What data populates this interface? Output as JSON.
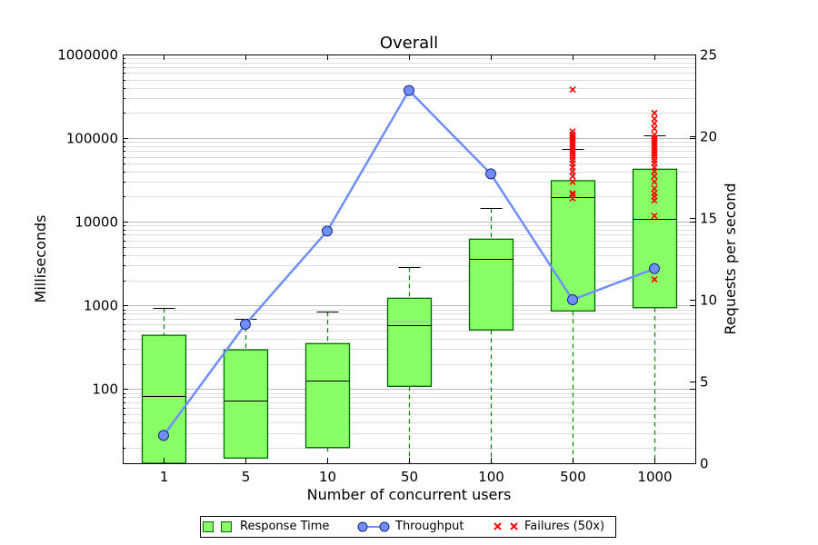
{
  "chart_data": {
    "type": "box",
    "title": "Overall",
    "xlabel": "Number of concurrent users",
    "ylabel": "Milliseconds",
    "y2label": "Requests per second",
    "categories": [
      "1",
      "5",
      "10",
      "50",
      "100",
      "500",
      "1000"
    ],
    "yscale": "log",
    "ylim": [
      13,
      1000000
    ],
    "y_ticks": [
      "100",
      "1000",
      "10000",
      "100000",
      "1000000"
    ],
    "y2lim": [
      0,
      25
    ],
    "y2_ticks": [
      "0",
      "5",
      "10",
      "15",
      "20",
      "25"
    ],
    "grid": "y-major-and-minor",
    "legend_position": "bottom-center",
    "series": [
      {
        "name": "Response Time",
        "kind": "boxplot",
        "color": "#88ff66",
        "edge_color": "#006400",
        "boxes": [
          {
            "whisker_low": 13,
            "q1": 13,
            "median": 82,
            "q3": 440,
            "whisker_high": 930
          },
          {
            "whisker_low": 15,
            "q1": 15,
            "median": 73,
            "q3": 295,
            "whisker_high": 690
          },
          {
            "whisker_low": 18,
            "q1": 20,
            "median": 125,
            "q3": 350,
            "whisker_high": 840
          },
          {
            "whisker_low": 13,
            "q1": 108,
            "median": 580,
            "q3": 1220,
            "whisker_high": 2850
          },
          {
            "whisker_low": 13,
            "q1": 510,
            "median": 3600,
            "q3": 6200,
            "whisker_high": 14500
          },
          {
            "whisker_low": 13,
            "q1": 860,
            "median": 19500,
            "q3": 31000,
            "whisker_high": 75000
          },
          {
            "whisker_low": 13,
            "q1": 940,
            "median": 10800,
            "q3": 42500,
            "whisker_high": 108000
          }
        ]
      },
      {
        "name": "Throughput",
        "kind": "line",
        "axis": "right",
        "color": "#6f8fff",
        "values": [
          1.7,
          8.5,
          14.2,
          22.8,
          17.7,
          10.0,
          11.9
        ]
      },
      {
        "name": "Failures (50x)",
        "kind": "scatter",
        "color": "#ff0000",
        "points": [
          {
            "x": "500",
            "y": [
              21000,
              22000,
              19000,
              30000,
              35000,
              40000,
              45000,
              50000,
              55000,
              60000,
              65000,
              70000,
              75000,
              80000,
              85000,
              90000,
              95000,
              100000,
              105000,
              110000,
              120000,
              380000
            ]
          },
          {
            "x": "1000",
            "y": [
              2050,
              11800,
              18000,
              20000,
              22000,
              25000,
              30000,
              35000,
              40000,
              45000,
              50000,
              55000,
              60000,
              65000,
              70000,
              75000,
              80000,
              85000,
              90000,
              95000,
              100000,
              110000,
              130000,
              150000,
              170000,
              200000
            ]
          }
        ]
      }
    ]
  }
}
